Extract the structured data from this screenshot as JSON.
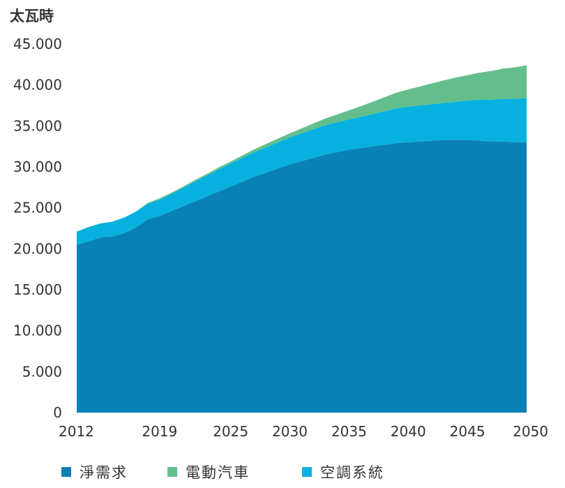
{
  "chart_data": {
    "type": "area",
    "stacked": true,
    "unit_label": "太瓦時",
    "title": "",
    "xlabel": "",
    "ylabel": "",
    "ylim": [
      0,
      45000
    ],
    "yticks": [
      0,
      5000,
      10000,
      15000,
      20000,
      25000,
      30000,
      35000,
      40000,
      45000
    ],
    "ytick_labels": [
      "0",
      "5.000",
      "10.000",
      "15.000",
      "20.000",
      "25.000",
      "30.000",
      "35.000",
      "40.000",
      "45.000"
    ],
    "xlim": [
      2012,
      2050
    ],
    "xtick_labels": [
      "2012",
      "2019",
      "2025",
      "2030",
      "2035",
      "2040",
      "2045",
      "2050"
    ],
    "xticks": [
      2012,
      2019,
      2025,
      2030,
      2035,
      2040,
      2045,
      2050
    ],
    "grid": false,
    "legend_position": "bottom",
    "series": [
      {
        "name": "淨需求",
        "color": "#0a81b5",
        "x": [
          2012,
          2013,
          2014,
          2015,
          2016,
          2017,
          2018,
          2019,
          2020,
          2021,
          2022,
          2023,
          2024,
          2025,
          2026,
          2027,
          2028,
          2029,
          2030,
          2031,
          2032,
          2033,
          2034,
          2035,
          2036,
          2037,
          2038,
          2039,
          2040,
          2041,
          2042,
          2043,
          2044,
          2045,
          2046,
          2047,
          2048,
          2049,
          2050
        ],
        "values": [
          20500,
          20900,
          21400,
          21500,
          21900,
          22600,
          23600,
          24000,
          24600,
          25200,
          25800,
          26400,
          27000,
          27600,
          28200,
          28800,
          29300,
          29800,
          30300,
          30700,
          31100,
          31500,
          31800,
          32100,
          32300,
          32500,
          32700,
          32900,
          33000,
          33100,
          33200,
          33300,
          33300,
          33300,
          33200,
          33100,
          33100,
          33000,
          33000
        ]
      },
      {
        "name": "電動汽車",
        "color": "#64be8c",
        "x": [
          2012,
          2013,
          2014,
          2015,
          2016,
          2017,
          2018,
          2019,
          2020,
          2021,
          2022,
          2023,
          2024,
          2025,
          2026,
          2027,
          2028,
          2029,
          2030,
          2031,
          2032,
          2033,
          2034,
          2035,
          2036,
          2037,
          2038,
          2039,
          2040,
          2041,
          2042,
          2043,
          2044,
          2045,
          2046,
          2047,
          2048,
          2049,
          2050
        ],
        "values": [
          0,
          0,
          0,
          0,
          0,
          0,
          100,
          150,
          150,
          150,
          200,
          200,
          250,
          250,
          300,
          350,
          400,
          450,
          500,
          600,
          700,
          800,
          950,
          1100,
          1300,
          1500,
          1700,
          1900,
          2100,
          2300,
          2550,
          2750,
          2950,
          3100,
          3300,
          3500,
          3700,
          3850,
          4000
        ]
      },
      {
        "name": "空調系統",
        "color": "#06b1df",
        "x": [
          2012,
          2013,
          2014,
          2015,
          2016,
          2017,
          2018,
          2019,
          2020,
          2021,
          2022,
          2023,
          2024,
          2025,
          2026,
          2027,
          2028,
          2029,
          2030,
          2031,
          2032,
          2033,
          2034,
          2035,
          2036,
          2037,
          2038,
          2039,
          2040,
          2041,
          2042,
          2043,
          2044,
          2045,
          2046,
          2047,
          2048,
          2049,
          2050
        ],
        "values": [
          1600,
          1750,
          1700,
          1800,
          1900,
          1950,
          1900,
          2000,
          2100,
          2250,
          2400,
          2550,
          2700,
          2800,
          2900,
          3000,
          3100,
          3200,
          3300,
          3400,
          3500,
          3600,
          3650,
          3700,
          3800,
          3950,
          4100,
          4250,
          4350,
          4400,
          4450,
          4500,
          4650,
          4800,
          5000,
          5100,
          5200,
          5300,
          5400
        ]
      }
    ]
  }
}
